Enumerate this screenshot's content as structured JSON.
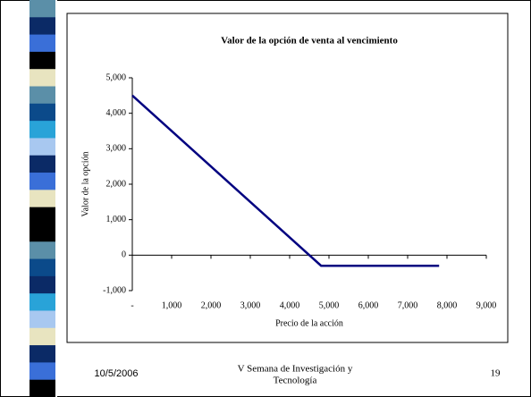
{
  "chart_data": {
    "type": "line",
    "title": "Valor de la opción de venta al vencimiento",
    "x_label": "Precio de la acción",
    "y_label": "Valor de la opción",
    "x": [
      0,
      4800,
      7800
    ],
    "values": [
      4500,
      -300,
      -300
    ],
    "color": "#000080",
    "xlim": [
      0,
      9000
    ],
    "xticks": [
      {
        "value": 0,
        "label": "-"
      },
      {
        "value": 1000,
        "label": "1,000"
      },
      {
        "value": 2000,
        "label": "2,000"
      },
      {
        "value": 3000,
        "label": "3,000"
      },
      {
        "value": 4000,
        "label": "4,000"
      },
      {
        "value": 5000,
        "label": "5,000"
      },
      {
        "value": 6000,
        "label": "6,000"
      },
      {
        "value": 7000,
        "label": "7,000"
      },
      {
        "value": 8000,
        "label": "8,000"
      },
      {
        "value": 9000,
        "label": "9,000"
      }
    ],
    "ylim": [
      -1000,
      5000
    ],
    "yticks": [
      {
        "value": -1000,
        "label": "-1,000"
      },
      0,
      {
        "value": 1000,
        "label": "1,000"
      },
      {
        "value": 2000,
        "label": "2,000"
      },
      {
        "value": 3000,
        "label": "3,000"
      },
      {
        "value": 4000,
        "label": "4,000"
      },
      {
        "value": 5000,
        "label": "5,000"
      }
    ]
  },
  "footer": {
    "date": "10/5/2006",
    "event": [
      "V Semana de Investigación y",
      "Tecnología"
    ],
    "page": "19"
  }
}
